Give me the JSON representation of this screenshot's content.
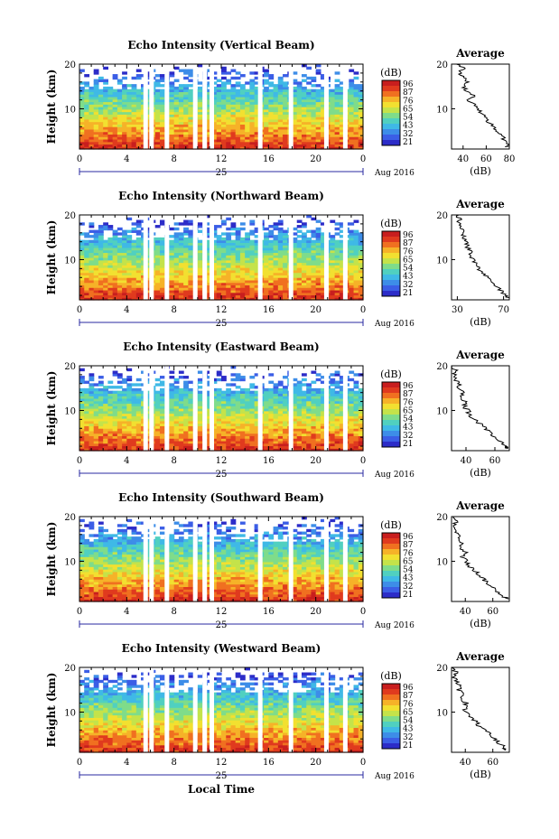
{
  "figure": {
    "xlabel": "Local Time",
    "date_label": "Aug 2016",
    "date_tick": "25",
    "ylabel": "Height (km)",
    "colorbar_unit": "(dB)",
    "average_title": "Average",
    "average_xlabel": "(dB)"
  },
  "colorbar": {
    "ticks": [
      "96",
      "87",
      "76",
      "65",
      "54",
      "43",
      "32",
      "21"
    ],
    "colors": [
      "#2c2cc8",
      "#3b5ee6",
      "#3d8de8",
      "#3fb9e6",
      "#50d0c0",
      "#7fdc8a",
      "#c4e34a",
      "#f2e030",
      "#f6b228",
      "#f07020",
      "#e03a1e",
      "#c81e1e"
    ]
  },
  "chart_data": [
    {
      "type": "heatmap",
      "title": "Echo Intensity (Vertical Beam)",
      "x_ticks": [
        "0",
        "4",
        "8",
        "12",
        "16",
        "20",
        "0"
      ],
      "y_ticks": [
        "20",
        "10"
      ],
      "xlim": [
        0,
        24
      ],
      "ylim": [
        1,
        20
      ],
      "gaps_hours": [
        5.6,
        6.1,
        7.4,
        9.8,
        10.6,
        11.2,
        15.3,
        17.9,
        20.9,
        22.5
      ],
      "average": {
        "x_ticks": [
          "40",
          "60",
          "80"
        ],
        "xlim": [
          30,
          80
        ],
        "heights": [
          1.5,
          2,
          3,
          4,
          5,
          6,
          7,
          8,
          9,
          10,
          11,
          12,
          13,
          14,
          15,
          16,
          17,
          18,
          19,
          20
        ],
        "values": [
          78,
          80,
          76,
          73,
          70,
          66,
          62,
          60,
          56,
          52,
          49,
          44,
          50,
          43,
          40,
          44,
          41,
          37,
          40,
          36
        ]
      }
    },
    {
      "type": "heatmap",
      "title": "Echo Intensity (Northward Beam)",
      "x_ticks": [
        "0",
        "4",
        "8",
        "12",
        "16",
        "20",
        "0"
      ],
      "y_ticks": [
        "20",
        "10"
      ],
      "xlim": [
        0,
        24
      ],
      "ylim": [
        1,
        20
      ],
      "gaps_hours": [
        5.6,
        6.1,
        7.4,
        9.8,
        10.6,
        11.2,
        15.3,
        17.9,
        20.9,
        22.5
      ],
      "average": {
        "x_ticks": [
          "30",
          "70"
        ],
        "xlim": [
          25,
          75
        ],
        "heights": [
          1.5,
          2,
          3,
          4,
          5,
          6,
          7,
          8,
          9,
          10,
          11,
          12,
          13,
          14,
          15,
          16,
          17,
          18,
          19,
          20
        ],
        "values": [
          73,
          72,
          68,
          64,
          60,
          56,
          52,
          48,
          46,
          44,
          41,
          42,
          38,
          39,
          35,
          36,
          33,
          31,
          32,
          30
        ]
      }
    },
    {
      "type": "heatmap",
      "title": "Echo Intensity (Eastward Beam)",
      "x_ticks": [
        "0",
        "4",
        "8",
        "12",
        "16",
        "20",
        "0"
      ],
      "y_ticks": [
        "20",
        "10"
      ],
      "xlim": [
        0,
        24
      ],
      "ylim": [
        1,
        20
      ],
      "gaps_hours": [
        5.6,
        6.1,
        7.4,
        9.8,
        10.6,
        11.2,
        15.3,
        17.9,
        20.9,
        22.5
      ],
      "average": {
        "x_ticks": [
          "40",
          "60"
        ],
        "xlim": [
          30,
          70
        ],
        "heights": [
          1.5,
          2,
          3,
          4,
          5,
          6,
          7,
          8,
          9,
          10,
          11,
          12,
          13,
          14,
          15,
          16,
          17,
          18,
          19,
          20
        ],
        "values": [
          69,
          68,
          64,
          60,
          57,
          54,
          50,
          46,
          43,
          41,
          39,
          40,
          37,
          38,
          34,
          35,
          33,
          32,
          33,
          31
        ]
      }
    },
    {
      "type": "heatmap",
      "title": "Echo Intensity (Southward Beam)",
      "x_ticks": [
        "0",
        "4",
        "8",
        "12",
        "16",
        "20",
        "0"
      ],
      "y_ticks": [
        "20",
        "10"
      ],
      "xlim": [
        0,
        24
      ],
      "ylim": [
        1,
        20
      ],
      "gaps_hours": [
        5.6,
        6.1,
        7.4,
        9.8,
        10.6,
        11.2,
        15.3,
        17.9,
        20.9,
        22.5
      ],
      "average": {
        "x_ticks": [
          "40",
          "60"
        ],
        "xlim": [
          30,
          72
        ],
        "heights": [
          1.5,
          2,
          3,
          4,
          5,
          6,
          7,
          8,
          9,
          10,
          11,
          12,
          13,
          14,
          15,
          16,
          17,
          18,
          19,
          20
        ],
        "values": [
          70,
          68,
          64,
          60,
          57,
          53,
          50,
          46,
          43,
          41,
          38,
          40,
          36,
          38,
          34,
          36,
          33,
          32,
          33,
          31
        ]
      }
    },
    {
      "type": "heatmap",
      "title": "Echo Intensity (Westward Beam)",
      "x_ticks": [
        "0",
        "4",
        "8",
        "12",
        "16",
        "20",
        "0"
      ],
      "y_ticks": [
        "20",
        "10"
      ],
      "xlim": [
        0,
        24
      ],
      "ylim": [
        1,
        20
      ],
      "gaps_hours": [
        5.6,
        6.1,
        7.4,
        9.8,
        10.6,
        11.2,
        15.3,
        17.9,
        20.9,
        22.5
      ],
      "average": {
        "x_ticks": [
          "40",
          "60"
        ],
        "xlim": [
          30,
          72
        ],
        "heights": [
          1.5,
          2,
          3,
          4,
          5,
          6,
          7,
          8,
          9,
          10,
          11,
          12,
          13,
          14,
          15,
          16,
          17,
          18,
          19,
          20
        ],
        "values": [
          70,
          69,
          65,
          61,
          58,
          54,
          50,
          47,
          44,
          41,
          39,
          41,
          37,
          38,
          35,
          36,
          34,
          32,
          33,
          31
        ]
      }
    }
  ]
}
